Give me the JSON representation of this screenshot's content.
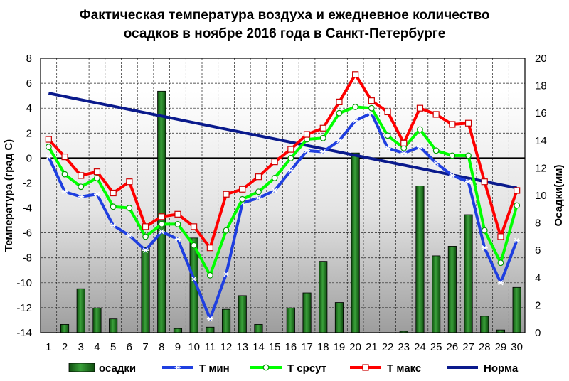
{
  "chart_data": {
    "type": "bar+line",
    "title": "Фактическая температура воздуха и ежедневное количество",
    "subtitle": "осадков в ноябре 2016 года в Санкт-Петербурге",
    "ylabel": "Температура (град С)",
    "y2label": "Осадки(мм)",
    "ylim": [
      -14,
      8
    ],
    "y2lim": [
      0,
      20
    ],
    "yticks": [
      "8",
      "6",
      "4",
      "2",
      "0",
      "-2",
      "-4",
      "-6",
      "-8",
      "-10",
      "-12",
      "-14"
    ],
    "y2ticks": [
      "20",
      "18",
      "16",
      "14",
      "12",
      "10",
      "8",
      "6",
      "4",
      "2",
      "0"
    ],
    "categories": [
      "1",
      "2",
      "3",
      "4",
      "5",
      "6",
      "7",
      "8",
      "9",
      "10",
      "11",
      "12",
      "13",
      "14",
      "15",
      "16",
      "17",
      "18",
      "19",
      "20",
      "21",
      "22",
      "23",
      "24",
      "25",
      "26",
      "27",
      "28",
      "29",
      "30"
    ],
    "precip": [
      0,
      0.6,
      3.2,
      1.8,
      1.0,
      0,
      6.2,
      17.6,
      0.3,
      6.9,
      0.4,
      1.7,
      2.7,
      0.6,
      0,
      1.8,
      2.9,
      5.2,
      2.2,
      13.1,
      0,
      0,
      0.1,
      10.7,
      5.6,
      6.3,
      8.6,
      1.2,
      0.2,
      3.3
    ],
    "t_min": [
      0.1,
      -2.7,
      -3.1,
      -2.9,
      -5.4,
      -6.2,
      -7.4,
      -5.9,
      -6.5,
      -9.7,
      -12.9,
      -9.3,
      -3.6,
      -3.2,
      -2.6,
      -1.0,
      0.6,
      0.5,
      1.4,
      3.0,
      3.6,
      0.8,
      0.4,
      0.9,
      -0.4,
      -1.4,
      -1.9,
      -7.2,
      -10.0,
      -6.6
    ],
    "t_avg": [
      0.9,
      -1.3,
      -2.3,
      -1.6,
      -3.9,
      -4.0,
      -6.3,
      -5.3,
      -5.3,
      -7.0,
      -9.4,
      -5.8,
      -3.3,
      -2.7,
      -1.6,
      0.0,
      1.5,
      1.6,
      3.6,
      4.1,
      4.0,
      1.8,
      0.8,
      2.3,
      0.6,
      0.2,
      0.2,
      -5.8,
      -8.4,
      -3.8
    ],
    "t_max": [
      1.5,
      0.1,
      -1.4,
      -1.1,
      -2.8,
      -1.9,
      -5.5,
      -4.7,
      -4.5,
      -5.5,
      -7.2,
      -2.9,
      -2.5,
      -1.5,
      -0.3,
      0.7,
      1.9,
      2.4,
      4.5,
      6.7,
      4.6,
      3.7,
      1.2,
      4.0,
      3.5,
      2.7,
      2.8,
      -1.9,
      -6.3,
      -2.6
    ],
    "norm_start": 5.2,
    "norm_end": -2.4,
    "legend": [
      {
        "label": "осадки",
        "color": "#1e7a1e",
        "kind": "bar"
      },
      {
        "label": "Т мин",
        "color": "#1f3fe0",
        "kind": "line-star"
      },
      {
        "label": "Т срсут",
        "color": "#00ff00",
        "kind": "line-circle"
      },
      {
        "label": "Т макс",
        "color": "#ff0000",
        "kind": "line-square"
      },
      {
        "label": "Норма",
        "color": "#0a1a8c",
        "kind": "line"
      }
    ],
    "legend_position": "bottom",
    "grid": true
  }
}
